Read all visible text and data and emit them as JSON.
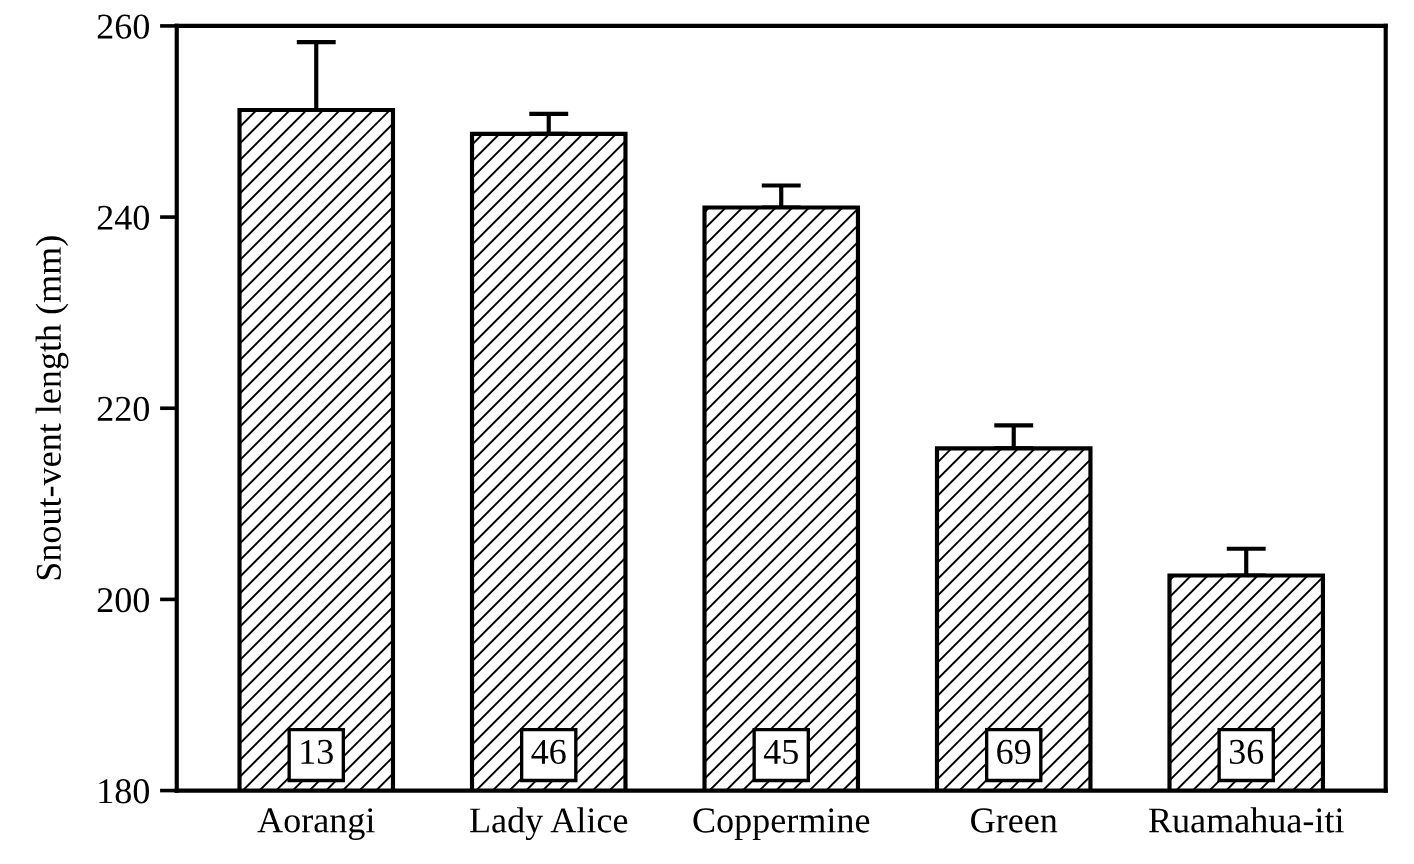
{
  "chart_data": {
    "type": "bar",
    "ylabel": "Snout-vent length (mm)",
    "categories": [
      "Aorangi",
      "Lady Alice",
      "Coppermine",
      "Green",
      "Ruamahua-iti"
    ],
    "values": [
      251.2,
      248.7,
      241.0,
      215.8,
      202.5
    ],
    "errors": [
      [
        251.2,
        258.3
      ],
      [
        248.7,
        250.8
      ],
      [
        241.0,
        243.3
      ],
      [
        215.8,
        218.2
      ],
      [
        202.5,
        205.3
      ]
    ],
    "color": "#000000",
    "ylim": [
      180,
      260
    ],
    "yticks": [
      180,
      200,
      220,
      240,
      260
    ],
    "grid": false,
    "annotations": [
      "13",
      "46",
      "45",
      "69",
      "36"
    ]
  }
}
